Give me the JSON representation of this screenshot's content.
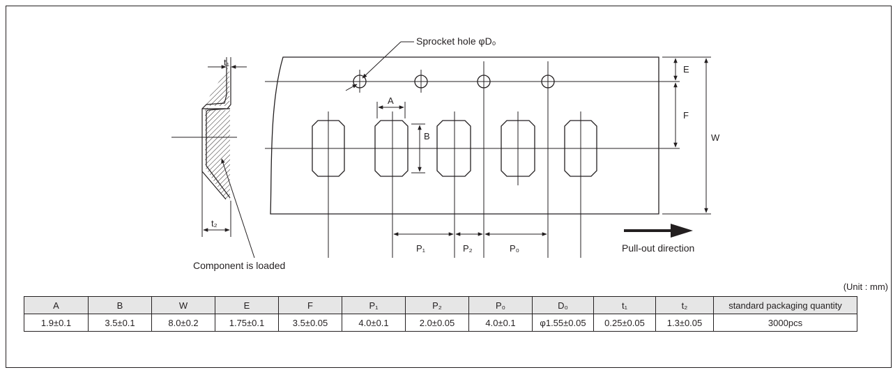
{
  "drawing": {
    "labels": {
      "sprocket_hole": "Sprocket hole φD₀",
      "component_loaded": "Component is loaded",
      "pull_out": "Pull-out direction",
      "t1": "t₁",
      "t2": "t₂",
      "A": "A",
      "B": "B",
      "E": "E",
      "F": "F",
      "W": "W",
      "P1": "P₁",
      "P2": "P₂",
      "P0": "P₀"
    }
  },
  "table": {
    "unit_note": "(Unit : mm)",
    "headers": [
      "A",
      "B",
      "W",
      "E",
      "F",
      "P₁",
      "P₂",
      "P₀",
      "D₀",
      "t₁",
      "t₂",
      "standard packaging quantity"
    ],
    "values": [
      "1.9±0.1",
      "3.5±0.1",
      "8.0±0.2",
      "1.75±0.1",
      "3.5±0.05",
      "4.0±0.1",
      "2.0±0.05",
      "4.0±0.1",
      "φ1.55±0.05",
      "0.25±0.05",
      "1.3±0.05",
      "3000pcs"
    ]
  }
}
